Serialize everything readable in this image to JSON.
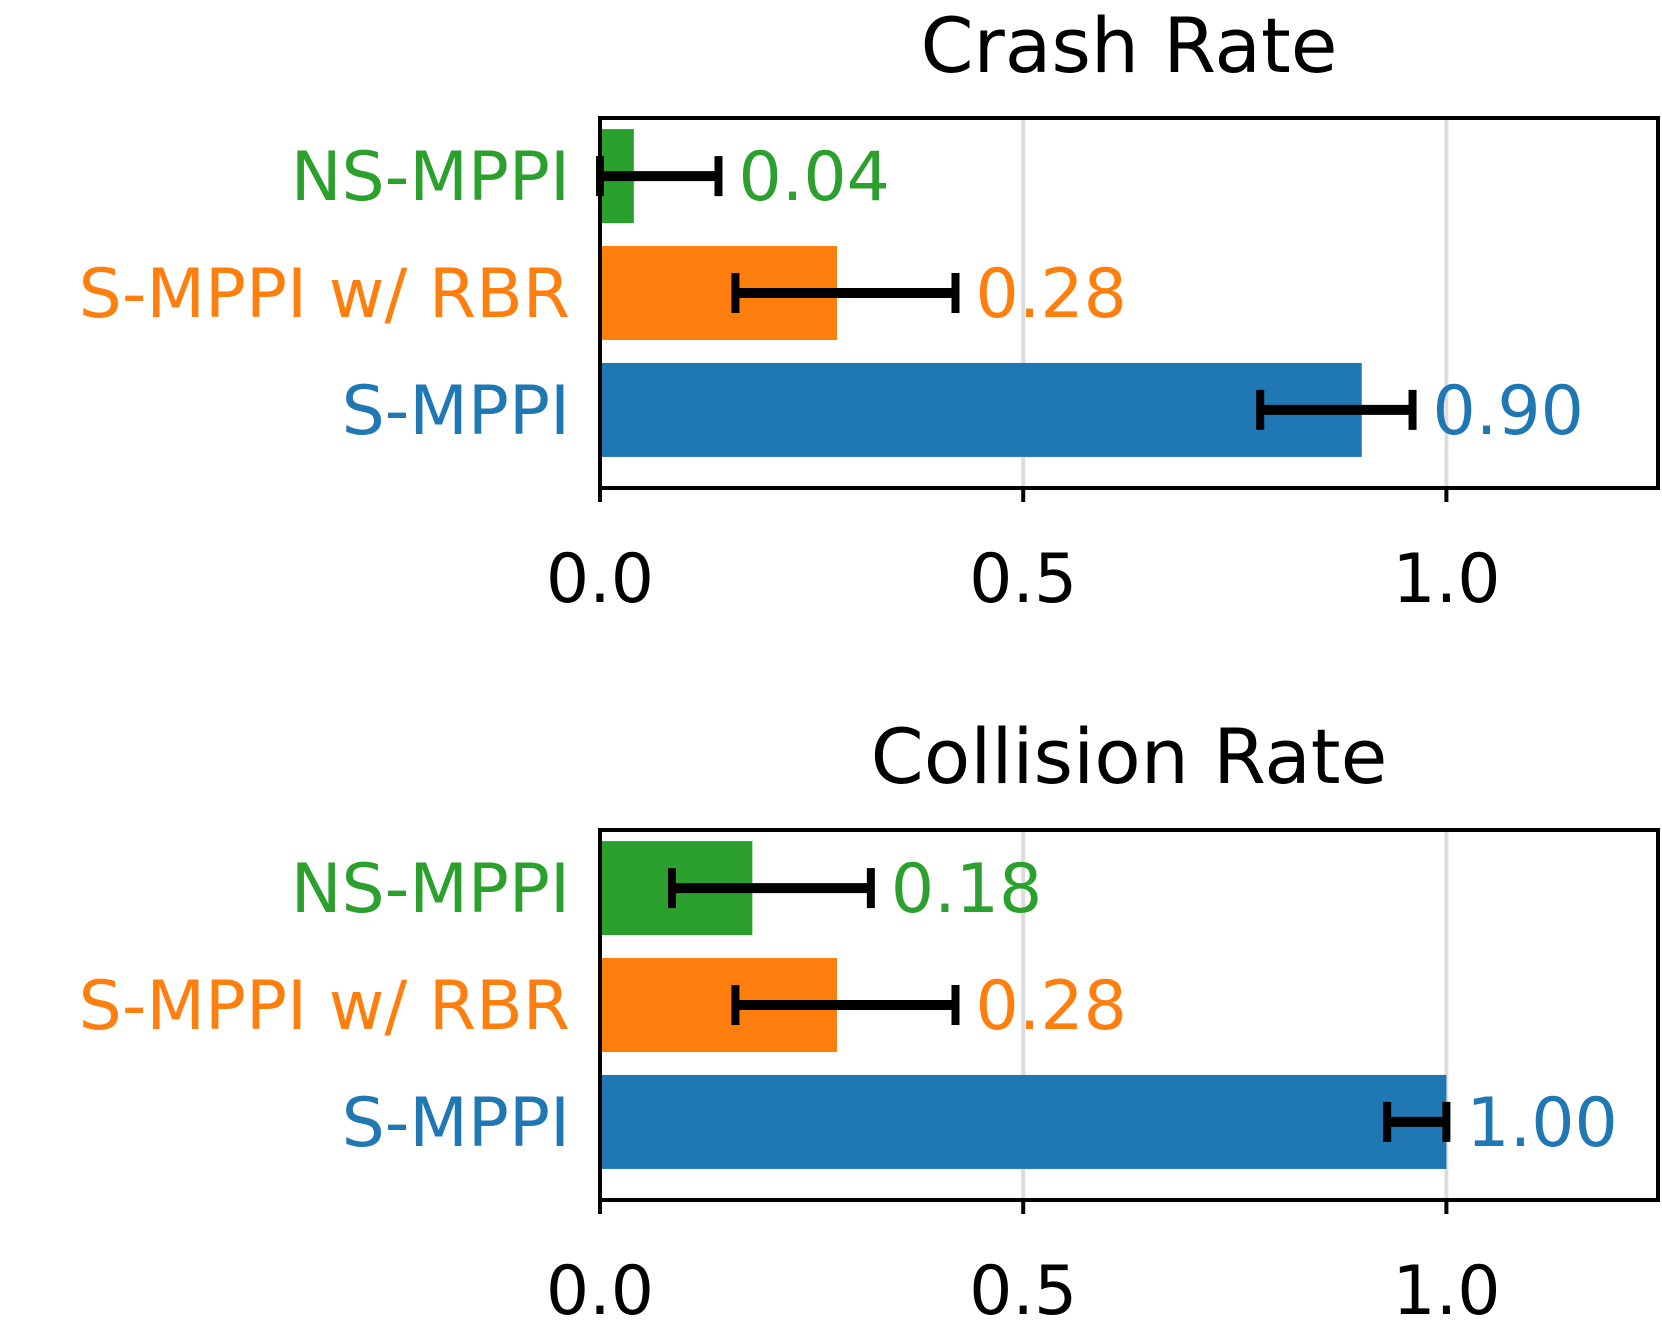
{
  "chart_data": [
    {
      "type": "bar",
      "orientation": "horizontal",
      "title": "Crash Rate",
      "categories": [
        "NS-MPPI",
        "S-MPPI w/ RBR",
        "S-MPPI"
      ],
      "values": [
        0.04,
        0.28,
        0.9
      ],
      "value_labels": [
        "0.04",
        "0.28",
        "0.90"
      ],
      "error_low": [
        0.0,
        0.16,
        0.78
      ],
      "error_high": [
        0.14,
        0.42,
        0.96
      ],
      "colors": [
        "#2ca02c",
        "#ff7f0e",
        "#1f77b4"
      ],
      "xlim": [
        0.0,
        1.25
      ],
      "xticks": [
        0.0,
        0.5,
        1.0
      ],
      "xtick_labels": [
        "0.0",
        "0.5",
        "1.0"
      ],
      "grid": "vertical",
      "xlabel": "",
      "ylabel": ""
    },
    {
      "type": "bar",
      "orientation": "horizontal",
      "title": "Collision Rate",
      "categories": [
        "NS-MPPI",
        "S-MPPI w/ RBR",
        "S-MPPI"
      ],
      "values": [
        0.18,
        0.28,
        1.0
      ],
      "value_labels": [
        "0.18",
        "0.28",
        "1.00"
      ],
      "error_low": [
        0.085,
        0.16,
        0.93
      ],
      "error_high": [
        0.32,
        0.42,
        1.0
      ],
      "colors": [
        "#2ca02c",
        "#ff7f0e",
        "#1f77b4"
      ],
      "xlim": [
        0.0,
        1.25
      ],
      "xticks": [
        0.0,
        0.5,
        1.0
      ],
      "xtick_labels": [
        "0.0",
        "0.5",
        "1.0"
      ],
      "grid": "vertical",
      "xlabel": "",
      "ylabel": ""
    }
  ]
}
